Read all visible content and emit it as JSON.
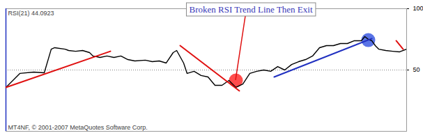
{
  "chart_data": {
    "type": "line",
    "title": "RSI(21) 44.0923",
    "annotation": "Broken RSI Trend Line Then Exit",
    "caption": "MT4NF, © 2001-2007 MetaQuotes Software Corp.",
    "x": [
      0,
      1,
      4,
      8,
      11,
      13,
      14,
      17,
      18,
      20,
      22,
      24,
      25,
      27,
      29,
      31,
      33,
      35,
      37,
      40,
      42,
      44,
      46,
      48,
      49,
      51,
      52,
      54,
      56,
      58,
      60,
      62,
      64,
      66,
      68,
      70,
      72,
      74,
      76,
      78,
      80,
      82,
      84,
      86,
      88,
      90,
      92,
      94,
      96,
      98,
      100,
      102,
      103,
      104,
      105,
      106,
      107,
      109,
      111,
      113,
      115
    ],
    "values": [
      35.8,
      38.6,
      47.2,
      48.3,
      47.7,
      67.0,
      68.2,
      67.0,
      65.9,
      65.3,
      65.9,
      64.2,
      61.4,
      60.2,
      61.4,
      60.2,
      61.4,
      58.5,
      57.4,
      58.0,
      56.8,
      57.4,
      55.7,
      64.2,
      65.9,
      55.7,
      47.2,
      48.9,
      45.5,
      44.3,
      37.5,
      37.5,
      41.5,
      35.8,
      38.6,
      47.2,
      48.9,
      50.0,
      48.9,
      52.8,
      50.0,
      54.5,
      56.8,
      58.5,
      61.4,
      68.2,
      69.9,
      69.9,
      71.6,
      71.6,
      73.9,
      73.9,
      77.3,
      75.0,
      73.9,
      69.9,
      67.0,
      65.9,
      65.3,
      64.8,
      67.0
    ],
    "color": "#000000",
    "trend_lines": [
      {
        "x": [
          0,
          30
        ],
        "values": [
          35.8,
          65.3
        ],
        "color": "#e01010"
      },
      {
        "x": [
          50,
          67
        ],
        "values": [
          69.9,
          33.0
        ],
        "color": "#e01010"
      },
      {
        "x": [
          77,
          105
        ],
        "values": [
          44.3,
          75.6
        ],
        "color": "#2030c0"
      },
      {
        "x": [
          112,
          114
        ],
        "values": [
          73.9,
          67.0
        ],
        "color": "#e01010"
      }
    ],
    "markers": [
      {
        "x": 66,
        "value": 41.5,
        "color": "#ff2020"
      },
      {
        "x": 104,
        "value": 74.4,
        "color": "#3050e0"
      }
    ],
    "xlim": [
      0,
      115
    ],
    "ylim": [
      0,
      100
    ],
    "yticks": [
      50,
      100
    ],
    "grid": true,
    "tick_labels": "y"
  }
}
